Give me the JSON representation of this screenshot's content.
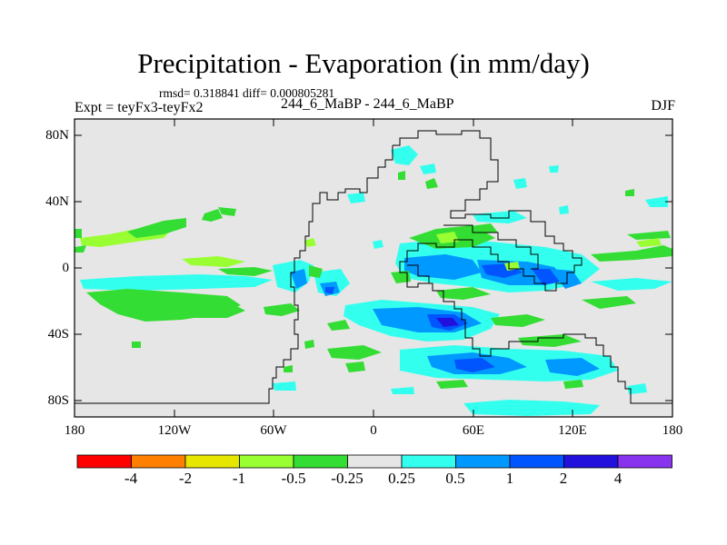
{
  "title": "Precipitation - Evaporation (in mm/day)",
  "stats": "rmsd= 0.318841 diff= 0.000805281",
  "expt": "Expt = teyFx3-teyFx2",
  "center_label": "244_6_MaBP - 244_6_MaBP",
  "season": "DJF",
  "lat_labels": [
    "80N",
    "40N",
    "0",
    "40S",
    "80S"
  ],
  "lon_labels": [
    "180",
    "120W",
    "60W",
    "0",
    "60E",
    "120E",
    "180"
  ],
  "colorbar": {
    "colors": [
      "#ff0000",
      "#ff8000",
      "#e6e600",
      "#99ff33",
      "#33dd33",
      "#e6e6e6",
      "#33ffee",
      "#0099ff",
      "#0055ff",
      "#2211dd",
      "#8833ee"
    ],
    "labels": [
      "-4",
      "-2",
      "-1",
      "-0.5",
      "-0.25",
      "0.25",
      "0.5",
      "1",
      "2",
      "4"
    ]
  },
  "map_colors": {
    "background": "#e6e6e6",
    "green": "#33dd33",
    "light_green": "#99ff33",
    "cyan": "#33ffee",
    "light_blue": "#0099ff",
    "blue": "#0055ff",
    "dark_blue": "#2211dd"
  }
}
